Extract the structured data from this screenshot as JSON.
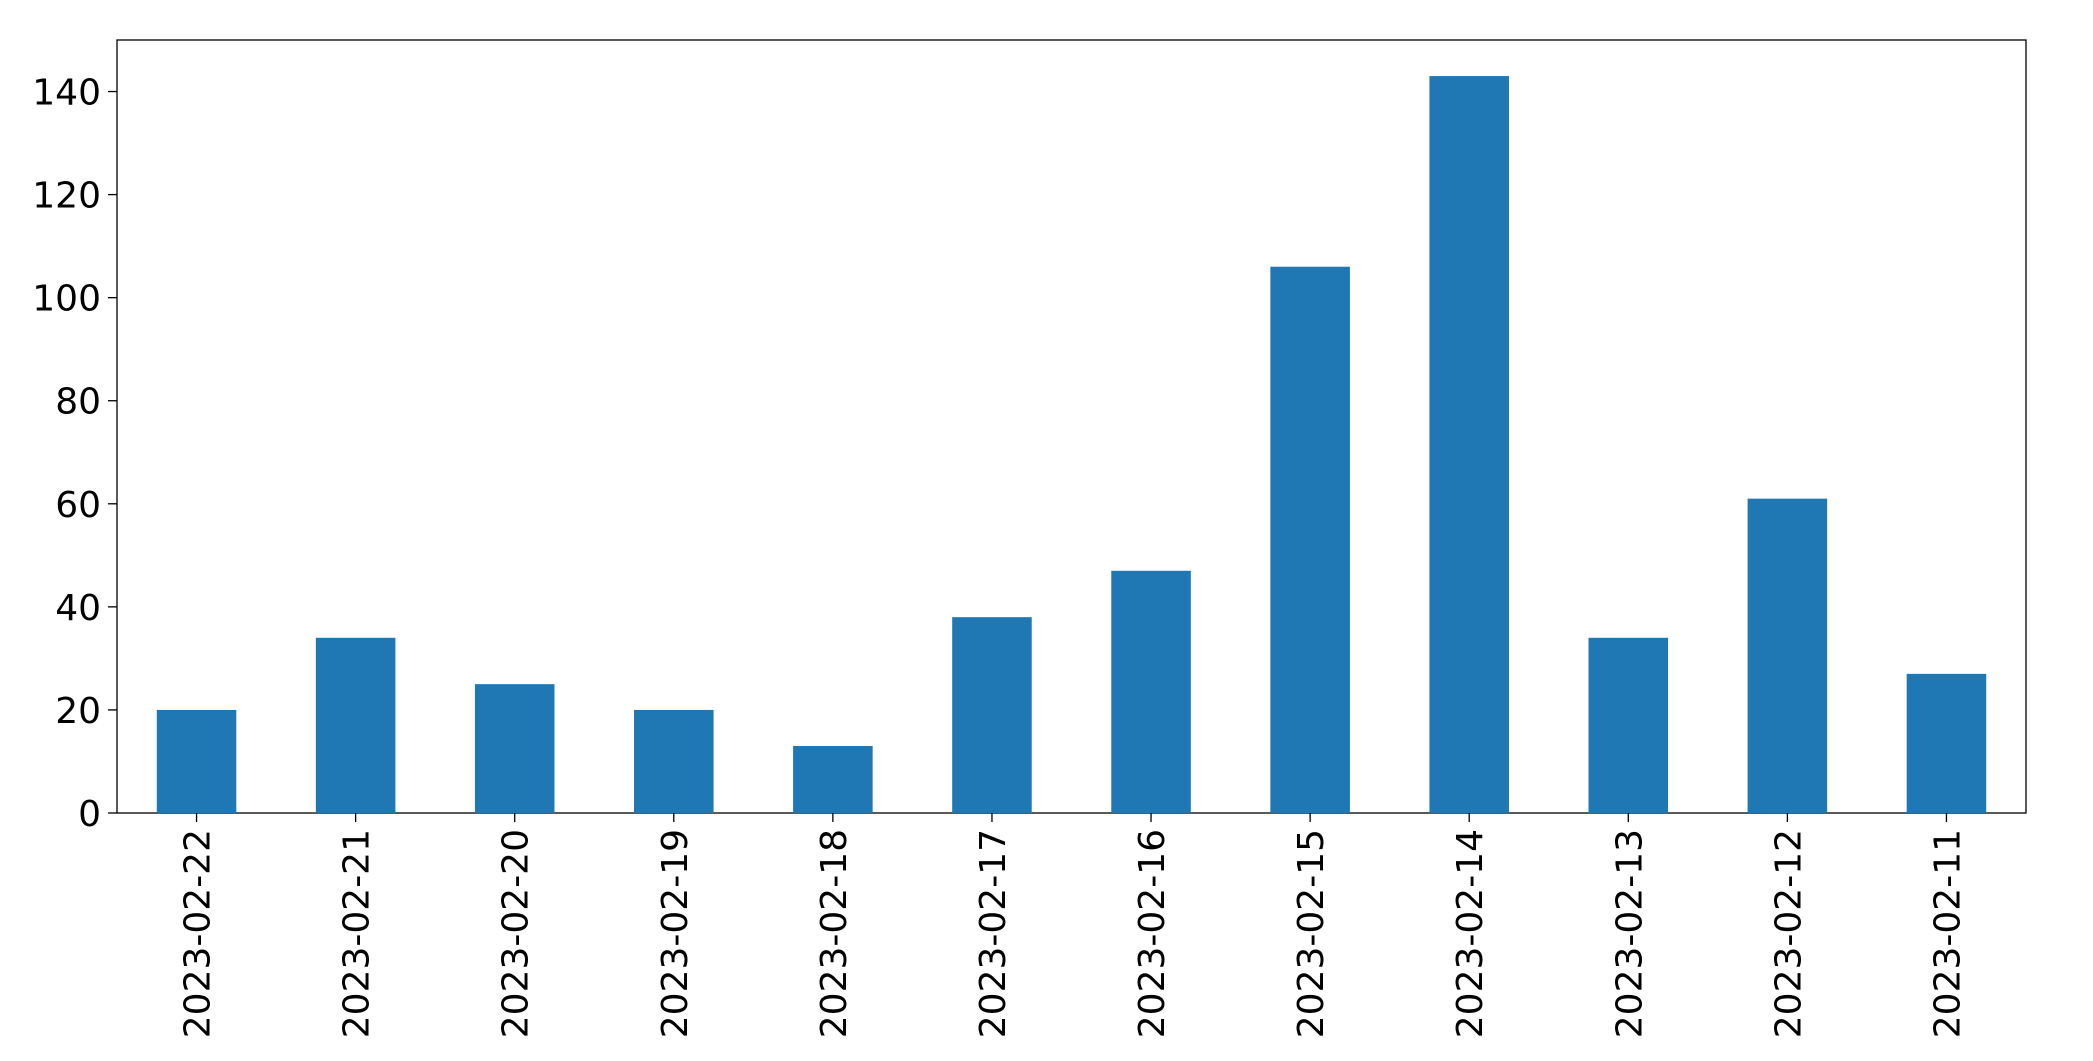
{
  "chart_data": {
    "type": "bar",
    "categories": [
      "2023-02-22",
      "2023-02-21",
      "2023-02-20",
      "2023-02-19",
      "2023-02-18",
      "2023-02-17",
      "2023-02-16",
      "2023-02-15",
      "2023-02-14",
      "2023-02-13",
      "2023-02-12",
      "2023-02-11"
    ],
    "values": [
      20,
      34,
      25,
      20,
      13,
      38,
      47,
      106,
      143,
      34,
      61,
      27
    ],
    "color": "#1f77b4",
    "ylim": [
      0,
      150
    ],
    "yticks": [
      0,
      20,
      40,
      60,
      80,
      100,
      120,
      140
    ],
    "grid": false
  }
}
